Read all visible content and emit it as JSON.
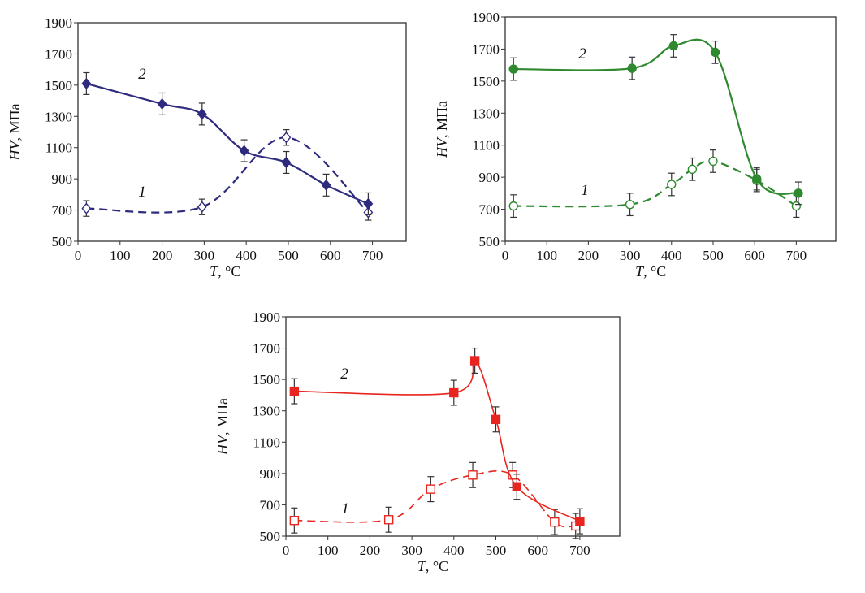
{
  "chart_data": [
    {
      "type": "line",
      "xlabel_var": "T",
      "xlabel_unit": ", °C",
      "ylabel_var": "HV",
      "ylabel_unit": ", МПа",
      "xlim": [
        0,
        780
      ],
      "ylim": [
        500,
        1900
      ],
      "xticks": [
        0,
        100,
        200,
        300,
        400,
        500,
        600,
        700
      ],
      "yticks": [
        500,
        700,
        900,
        1100,
        1300,
        1500,
        1700,
        1900
      ],
      "grid": false,
      "color": "#2e2b7f",
      "series": [
        {
          "name": "1",
          "marker": "diamond-open",
          "line": "dashed",
          "x": [
            20,
            295,
            495,
            690
          ],
          "y": [
            710,
            720,
            1165,
            685
          ],
          "yerr": 50
        },
        {
          "name": "2",
          "marker": "diamond-filled",
          "line": "solid",
          "x": [
            20,
            200,
            295,
            395,
            495,
            590,
            690
          ],
          "y": [
            1510,
            1380,
            1315,
            1080,
            1005,
            860,
            740
          ],
          "yerr": 70
        }
      ]
    },
    {
      "type": "line",
      "xlabel_var": "T",
      "xlabel_unit": ", °C",
      "ylabel_var": "HV",
      "ylabel_unit": ", МПа",
      "xlim": [
        0,
        795
      ],
      "ylim": [
        500,
        1900
      ],
      "xticks": [
        0,
        100,
        200,
        300,
        400,
        500,
        600,
        700
      ],
      "yticks": [
        500,
        700,
        900,
        1100,
        1300,
        1500,
        1700,
        1900
      ],
      "grid": false,
      "color": "#2f8a2f",
      "series": [
        {
          "name": "1",
          "marker": "circle-open",
          "line": "dashed",
          "x": [
            20,
            300,
            400,
            450,
            500,
            605,
            700
          ],
          "y": [
            720,
            730,
            855,
            950,
            1000,
            880,
            720
          ],
          "yerr": 70
        },
        {
          "name": "2",
          "marker": "circle-filled",
          "line": "solid",
          "x": [
            20,
            305,
            405,
            505,
            605,
            705
          ],
          "y": [
            1575,
            1580,
            1720,
            1680,
            890,
            800
          ],
          "yerr": 70
        }
      ]
    },
    {
      "type": "line",
      "xlabel_var": "T",
      "xlabel_unit": ", °C",
      "ylabel_var": "HV",
      "ylabel_unit": ", МПа",
      "xlim": [
        0,
        795
      ],
      "ylim": [
        500,
        1900
      ],
      "xticks": [
        0,
        100,
        200,
        300,
        400,
        500,
        600,
        700
      ],
      "yticks": [
        500,
        700,
        900,
        1100,
        1300,
        1500,
        1700,
        1900
      ],
      "grid": false,
      "color": "#e8251f",
      "series": [
        {
          "name": "1",
          "marker": "square-open",
          "line": "dashed",
          "x": [
            20,
            245,
            345,
            445,
            540,
            640,
            690
          ],
          "y": [
            600,
            605,
            800,
            890,
            890,
            590,
            565
          ],
          "yerr": 80
        },
        {
          "name": "2",
          "marker": "square-filled",
          "line": "solid",
          "x": [
            20,
            400,
            450,
            500,
            550,
            700
          ],
          "y": [
            1425,
            1415,
            1620,
            1245,
            815,
            595
          ],
          "yerr": 80
        }
      ]
    }
  ]
}
